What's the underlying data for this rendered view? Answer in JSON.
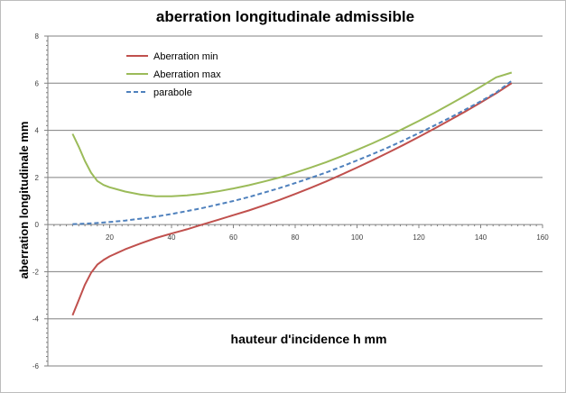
{
  "chart_data": {
    "type": "line",
    "title": "aberration longitudinale admissible",
    "xlabel": "hauteur d'incidence h mm",
    "ylabel": "aberration longitudinale mm",
    "xlim": [
      0,
      160
    ],
    "ylim": [
      -6,
      8
    ],
    "x_ticks": [
      20,
      40,
      60,
      80,
      100,
      120,
      140,
      160
    ],
    "x_tick_labels": [
      "20",
      "40",
      "60",
      "80",
      "100",
      "120",
      "140",
      "160"
    ],
    "y_ticks": [
      -6,
      -4,
      -2,
      0,
      2,
      4,
      6,
      8
    ],
    "y_tick_labels": [
      "-6",
      "-4",
      "-2",
      "0",
      "2",
      "4",
      "6",
      "8"
    ],
    "grid": "horizontal",
    "legend_position": "top-left",
    "colors": {
      "min": "#c0504d",
      "max": "#9bbb59",
      "parabole": "#4f81bd",
      "grid": "#808080"
    },
    "series": [
      {
        "name": "Aberration min",
        "x": [
          8,
          10,
          12,
          14,
          16,
          18,
          20,
          25,
          30,
          35,
          40,
          45,
          50,
          55,
          60,
          65,
          70,
          75,
          80,
          85,
          90,
          95,
          100,
          105,
          110,
          115,
          120,
          125,
          130,
          135,
          140,
          145,
          150
        ],
        "values": [
          -3.85,
          -3.2,
          -2.55,
          -2.05,
          -1.7,
          -1.5,
          -1.35,
          -1.05,
          -0.8,
          -0.57,
          -0.38,
          -0.2,
          0.0,
          0.2,
          0.4,
          0.6,
          0.82,
          1.05,
          1.3,
          1.56,
          1.83,
          2.12,
          2.42,
          2.73,
          3.05,
          3.38,
          3.72,
          4.07,
          4.43,
          4.8,
          5.18,
          5.57,
          6.0
        ]
      },
      {
        "name": "Aberration max",
        "x": [
          8,
          10,
          12,
          14,
          16,
          18,
          20,
          25,
          30,
          35,
          40,
          45,
          50,
          55,
          60,
          65,
          70,
          75,
          80,
          85,
          90,
          95,
          100,
          105,
          110,
          115,
          120,
          125,
          130,
          135,
          140,
          145,
          150
        ],
        "values": [
          3.85,
          3.3,
          2.7,
          2.2,
          1.85,
          1.68,
          1.58,
          1.4,
          1.27,
          1.2,
          1.2,
          1.24,
          1.31,
          1.41,
          1.53,
          1.67,
          1.83,
          2.0,
          2.2,
          2.42,
          2.65,
          2.9,
          3.17,
          3.45,
          3.75,
          4.07,
          4.4,
          4.74,
          5.1,
          5.47,
          5.85,
          6.25,
          6.45
        ]
      },
      {
        "name": "parabole",
        "x": [
          8,
          10,
          15,
          20,
          25,
          30,
          35,
          40,
          45,
          50,
          55,
          60,
          65,
          70,
          75,
          80,
          85,
          90,
          95,
          100,
          105,
          110,
          115,
          120,
          125,
          130,
          135,
          140,
          145,
          150
        ],
        "values": [
          0.02,
          0.03,
          0.06,
          0.11,
          0.17,
          0.25,
          0.34,
          0.45,
          0.57,
          0.7,
          0.85,
          1.0,
          1.17,
          1.36,
          1.55,
          1.76,
          1.98,
          2.21,
          2.46,
          2.72,
          2.99,
          3.27,
          3.57,
          3.88,
          4.2,
          4.53,
          4.88,
          5.23,
          5.6,
          6.1
        ]
      }
    ]
  }
}
